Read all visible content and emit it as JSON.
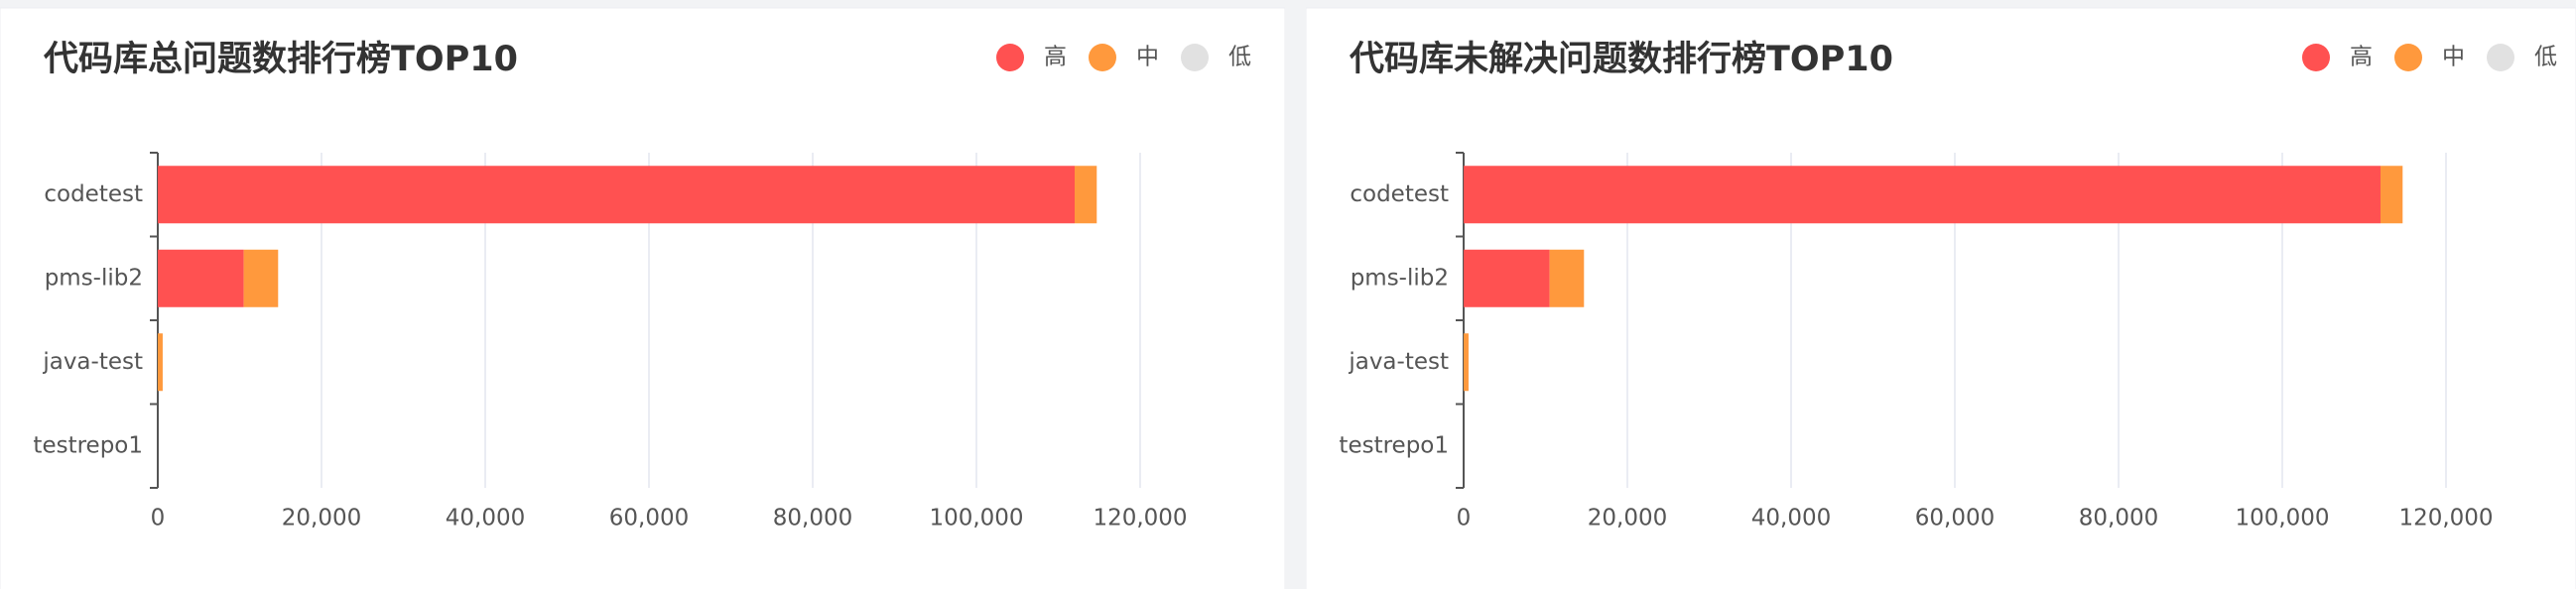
{
  "chart_data": [
    {
      "type": "stacked_barh",
      "title": "代码库总问题数排行榜TOP10",
      "categories": [
        "codetest",
        "pms-lib2",
        "java-test",
        "testrepo1"
      ],
      "series": [
        {
          "name": "高",
          "color": "#ff5151",
          "values": [
            112000,
            10500,
            0,
            0
          ]
        },
        {
          "name": "中",
          "color": "#ff993d",
          "values": [
            2700,
            4200,
            600,
            0
          ]
        },
        {
          "name": "低",
          "color": "#e1e1e1",
          "values": [
            0,
            0,
            0,
            0
          ]
        }
      ],
      "xlim": [
        0,
        120000
      ],
      "xticks": [
        0,
        {
          "value": 20000,
          "label": "20,000"
        },
        {
          "value": 40000,
          "label": "40,000"
        },
        {
          "value": 60000,
          "label": "60,000"
        },
        {
          "value": 80000,
          "label": "80,000"
        },
        {
          "value": 100000,
          "label": "100,000"
        },
        {
          "value": 120000,
          "label": "120,000"
        }
      ],
      "grid": true,
      "legend": "top-right"
    },
    {
      "type": "stacked_barh",
      "title": "代码库未解决问题数排行榜TOP10",
      "categories": [
        "codetest",
        "pms-lib2",
        "java-test",
        "testrepo1"
      ],
      "series": [
        {
          "name": "高",
          "color": "#ff5151",
          "values": [
            112000,
            10500,
            0,
            0
          ]
        },
        {
          "name": "中",
          "color": "#ff993d",
          "values": [
            2700,
            4200,
            600,
            0
          ]
        },
        {
          "name": "低",
          "color": "#e1e1e1",
          "values": [
            0,
            0,
            0,
            0
          ]
        }
      ],
      "xlim": [
        0,
        120000
      ],
      "xticks": [
        0,
        {
          "value": 20000,
          "label": "20,000"
        },
        {
          "value": 40000,
          "label": "40,000"
        },
        {
          "value": 60000,
          "label": "60,000"
        },
        {
          "value": 80000,
          "label": "80,000"
        },
        {
          "value": 100000,
          "label": "100,000"
        },
        {
          "value": 120000,
          "label": "120,000"
        }
      ],
      "grid": true,
      "legend": "top-right"
    }
  ]
}
